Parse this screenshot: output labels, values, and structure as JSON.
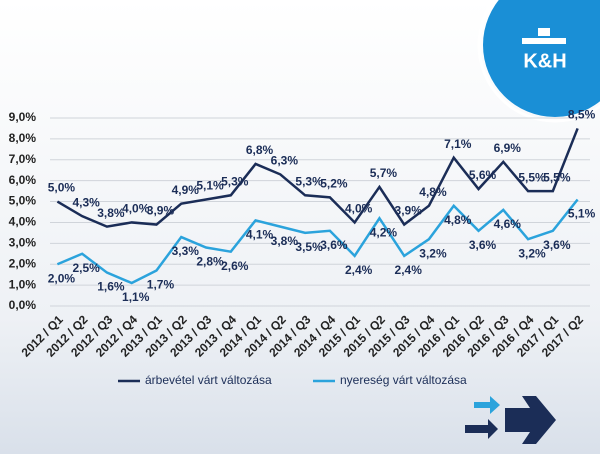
{
  "logo": {
    "text": "K&H"
  },
  "chart_data": {
    "type": "line",
    "categories": [
      "2012 / Q1",
      "2012 / Q2",
      "2012 / Q3",
      "2012 / Q4",
      "2013 / Q1",
      "2013 / Q2",
      "2013 / Q3",
      "2013 / Q4",
      "2014 / Q1",
      "2014 / Q2",
      "2014 / Q3",
      "2014 / Q4",
      "2015 / Q1",
      "2015 / Q2",
      "2015 / Q3",
      "2015 / Q4",
      "2016 / Q1",
      "2016 / Q2",
      "2016 / Q3",
      "2016 / Q4",
      "2017 / Q1",
      "2017 / Q2"
    ],
    "series": [
      {
        "name": "árbevétel várt változása",
        "color": "#1b2d57",
        "values": [
          5.0,
          4.3,
          3.8,
          4.0,
          3.9,
          4.9,
          5.1,
          5.3,
          6.8,
          6.3,
          5.3,
          5.2,
          4.0,
          5.7,
          3.9,
          4.8,
          7.1,
          5.6,
          6.9,
          5.5,
          5.5,
          8.5
        ],
        "value_labels": [
          "5,0%",
          "4,3%",
          "3,8%",
          "4,0%",
          "3,9%",
          "4,9%",
          "5,1%",
          "5,3%",
          "6,8%",
          "6,3%",
          "5,3%",
          "5,2%",
          "4,0%",
          "5,7%",
          "3,9%",
          "4,8%",
          "7,1%",
          "5,6%",
          "6,9%",
          "5,5%",
          "5,5%",
          "8,5%"
        ]
      },
      {
        "name": "nyereség várt változása",
        "color": "#2ba3dc",
        "values": [
          2.0,
          2.5,
          1.6,
          1.1,
          1.7,
          3.3,
          2.8,
          2.6,
          4.1,
          3.8,
          3.5,
          3.6,
          2.4,
          4.2,
          2.4,
          3.2,
          4.8,
          3.6,
          4.6,
          3.2,
          3.6,
          5.1
        ],
        "value_labels": [
          "2,0%",
          "2,5%",
          "1,6%",
          "1,1%",
          "1,7%",
          "3,3%",
          "2,8%",
          "2,6%",
          "4,1%",
          "3,8%",
          "3,5%",
          "3,6%",
          "2,4%",
          "4,2%",
          "2,4%",
          "3,2%",
          "4,8%",
          "3,6%",
          "4,6%",
          "3,2%",
          "3,6%",
          "5,1%"
        ]
      }
    ],
    "ylim": [
      0,
      9
    ],
    "yticks": [
      {
        "value": 0,
        "label": "0,0%"
      },
      {
        "value": 1,
        "label": "1,0%"
      },
      {
        "value": 2,
        "label": "2,0%"
      },
      {
        "value": 3,
        "label": "3,0%"
      },
      {
        "value": 4,
        "label": "4,0%"
      },
      {
        "value": 5,
        "label": "5,0%"
      },
      {
        "value": 6,
        "label": "6,0%"
      },
      {
        "value": 7,
        "label": "7,0%"
      },
      {
        "value": 8,
        "label": "8,0%"
      },
      {
        "value": 9,
        "label": "9,0%"
      }
    ],
    "grid": true,
    "legend": "bottom"
  }
}
